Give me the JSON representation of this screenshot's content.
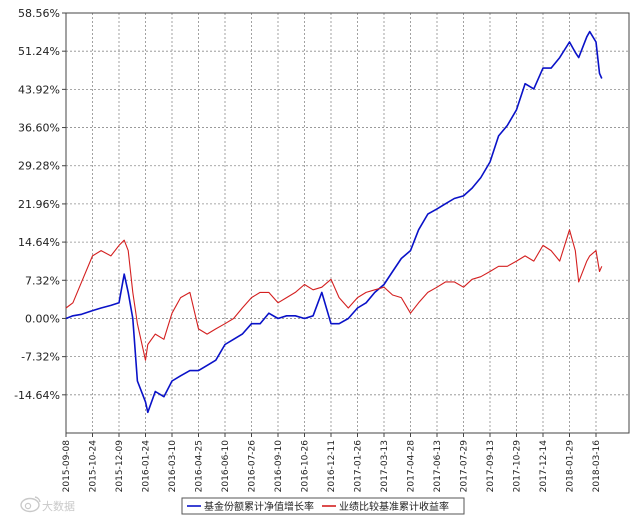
{
  "chart_data": {
    "type": "line",
    "title": "",
    "xlabel": "",
    "ylabel": "",
    "grid": true,
    "legend_position": "bottom",
    "y_ticks": [
      "58.56%",
      "51.24%",
      "43.92%",
      "36.60%",
      "29.28%",
      "21.96%",
      "14.64%",
      "7.32%",
      "0.00%",
      "-7.32%",
      "-14.64%"
    ],
    "ylim": [
      -21.96,
      58.56
    ],
    "x_ticks": [
      "2015-09-08",
      "2015-10-24",
      "2015-12-09",
      "2016-01-24",
      "2016-03-10",
      "2016-04-25",
      "2016-06-10",
      "2016-07-26",
      "2016-09-10",
      "2016-10-26",
      "2016-12-11",
      "2017-01-26",
      "2017-03-13",
      "2017-04-28",
      "2017-06-13",
      "2017-07-29",
      "2017-09-13",
      "2017-10-29",
      "2017-12-14",
      "2018-01-29",
      "2018-03-16"
    ],
    "series": [
      {
        "name": "基金份额累计净值增长率",
        "color": "#0a12c8",
        "x": [
          "2015-09-08",
          "2015-09-20",
          "2015-10-05",
          "2015-10-24",
          "2015-11-08",
          "2015-11-25",
          "2015-12-09",
          "2015-12-18",
          "2015-12-25",
          "2016-01-02",
          "2016-01-10",
          "2016-01-24",
          "2016-01-28",
          "2016-02-10",
          "2016-02-25",
          "2016-03-10",
          "2016-03-25",
          "2016-04-10",
          "2016-04-25",
          "2016-05-10",
          "2016-05-25",
          "2016-06-10",
          "2016-06-25",
          "2016-07-10",
          "2016-07-26",
          "2016-08-10",
          "2016-08-25",
          "2016-09-10",
          "2016-09-25",
          "2016-10-10",
          "2016-10-26",
          "2016-11-10",
          "2016-11-25",
          "2016-12-11",
          "2016-12-25",
          "2017-01-10",
          "2017-01-26",
          "2017-02-10",
          "2017-02-25",
          "2017-03-13",
          "2017-03-28",
          "2017-04-12",
          "2017-04-28",
          "2017-05-12",
          "2017-05-28",
          "2017-06-13",
          "2017-06-28",
          "2017-07-13",
          "2017-07-29",
          "2017-08-13",
          "2017-08-28",
          "2017-09-13",
          "2017-09-28",
          "2017-10-13",
          "2017-10-29",
          "2017-11-13",
          "2017-11-28",
          "2017-12-14",
          "2017-12-28",
          "2018-01-12",
          "2018-01-29",
          "2018-02-08",
          "2018-02-14",
          "2018-02-28",
          "2018-03-05",
          "2018-03-16",
          "2018-03-22",
          "2018-03-26"
        ],
        "values": [
          0.0,
          0.5,
          0.8,
          1.5,
          2.0,
          2.5,
          3.0,
          8.5,
          5.0,
          0.0,
          -12.0,
          -16.0,
          -18.0,
          -14.0,
          -15.0,
          -12.0,
          -11.0,
          -10.0,
          -10.0,
          -9.0,
          -8.0,
          -5.0,
          -4.0,
          -3.0,
          -1.0,
          -1.0,
          1.0,
          0.0,
          0.5,
          0.5,
          0.0,
          0.5,
          5.0,
          -1.0,
          -1.0,
          0.0,
          2.0,
          3.0,
          5.0,
          6.5,
          9.0,
          11.5,
          13.0,
          17.0,
          20.0,
          21.0,
          22.0,
          23.0,
          23.5,
          25.0,
          27.0,
          30.0,
          35.0,
          37.0,
          40.0,
          45.0,
          44.0,
          48.0,
          48.0,
          50.0,
          53.0,
          51.0,
          50.0,
          54.0,
          55.0,
          53.0,
          47.0,
          46.0
        ]
      },
      {
        "name": "业绩比较基准累计收益率",
        "color": "#d42020",
        "x": [
          "2015-09-08",
          "2015-09-20",
          "2015-10-05",
          "2015-10-24",
          "2015-11-08",
          "2015-11-25",
          "2015-12-09",
          "2015-12-18",
          "2015-12-25",
          "2016-01-02",
          "2016-01-10",
          "2016-01-24",
          "2016-01-28",
          "2016-02-10",
          "2016-02-25",
          "2016-03-10",
          "2016-03-25",
          "2016-04-10",
          "2016-04-25",
          "2016-05-10",
          "2016-05-25",
          "2016-06-10",
          "2016-06-25",
          "2016-07-10",
          "2016-07-26",
          "2016-08-10",
          "2016-08-25",
          "2016-09-10",
          "2016-09-25",
          "2016-10-10",
          "2016-10-26",
          "2016-11-10",
          "2016-11-25",
          "2016-12-11",
          "2016-12-25",
          "2017-01-10",
          "2017-01-26",
          "2017-02-10",
          "2017-02-25",
          "2017-03-13",
          "2017-03-28",
          "2017-04-12",
          "2017-04-28",
          "2017-05-12",
          "2017-05-28",
          "2017-06-13",
          "2017-06-28",
          "2017-07-13",
          "2017-07-29",
          "2017-08-13",
          "2017-08-28",
          "2017-09-13",
          "2017-09-28",
          "2017-10-13",
          "2017-10-29",
          "2017-11-13",
          "2017-11-28",
          "2017-12-14",
          "2017-12-28",
          "2018-01-12",
          "2018-01-29",
          "2018-02-08",
          "2018-02-14",
          "2018-02-28",
          "2018-03-05",
          "2018-03-16",
          "2018-03-22",
          "2018-03-26"
        ],
        "values": [
          2.0,
          3.0,
          7.0,
          12.0,
          13.0,
          12.0,
          14.0,
          15.0,
          13.0,
          5.0,
          -1.0,
          -8.0,
          -5.0,
          -3.0,
          -4.0,
          1.0,
          4.0,
          5.0,
          -2.0,
          -3.0,
          -2.0,
          -1.0,
          0.0,
          2.0,
          4.0,
          5.0,
          5.0,
          3.0,
          4.0,
          5.0,
          6.5,
          5.5,
          6.0,
          7.5,
          4.0,
          2.0,
          4.0,
          5.0,
          5.5,
          6.0,
          4.5,
          4.0,
          1.0,
          3.0,
          5.0,
          6.0,
          7.0,
          7.0,
          6.0,
          7.5,
          8.0,
          9.0,
          10.0,
          10.0,
          11.0,
          12.0,
          11.0,
          14.0,
          13.0,
          11.0,
          17.0,
          13.0,
          7.0,
          11.0,
          12.0,
          13.0,
          9.0,
          10.0
        ]
      }
    ]
  },
  "watermark": {
    "text": "大数据"
  }
}
